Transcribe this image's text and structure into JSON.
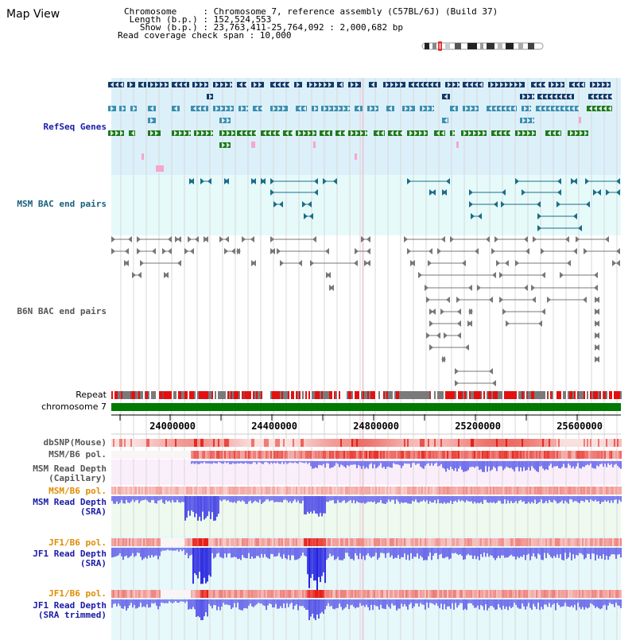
{
  "header": {
    "title": "Map View",
    "info_lines": [
      "Chromosome     : Chromosome 7, reference assembly (C57BL/6J) (Build 37)",
      " Length (b.p.) : 152,524,553",
      "   Show (b.p.) : 23,763,411-25,764,092 : 2,000,682 bp",
      "Read coverage check span : 10,000"
    ]
  },
  "tracks": {
    "refseq_genes": "RefSeq Genes",
    "msm_bac": "MSM BAC end pairs",
    "b6n_bac": "B6N BAC end pairs",
    "repeat": "Repeat",
    "chromosome": "chromosome 7",
    "dbsnp": "dbSNP(Mouse)",
    "msm_b6_pol_1": "MSM/B6 pol.",
    "msm_read_depth_cap_1": "MSM Read Depth",
    "msm_read_depth_cap_2": "(Capillary)",
    "msm_b6_pol_2": "MSM/B6 pol.",
    "msm_read_depth_sra_1": "MSM Read Depth",
    "msm_read_depth_sra_2": "(SRA)",
    "jf1_b6_pol_1": "JF1/B6 pol.",
    "jf1_read_depth_sra_1": "JF1 Read Depth",
    "jf1_read_depth_sra_2": "(SRA)",
    "jf1_b6_pol_2": "JF1/B6 pol.",
    "jf1_read_depth_trim_1": "JF1 Read Depth",
    "jf1_read_depth_trim_2": "(SRA trimmed)"
  },
  "axis": {
    "ticks": [
      "24000000",
      "24400000",
      "24800000",
      "25200000",
      "25600000"
    ]
  },
  "colors": {
    "gene_dark": "#123a6a",
    "gene_mid": "#3a8fb0",
    "gene_green": "#1e7a1e",
    "gene_pink": "#f7a6c9",
    "bac_msm": "#1a6d8a",
    "bac_b6n": "#777777",
    "label_blue": "#1a1aa8",
    "label_teal": "#18607e",
    "label_orange": "#e08c00",
    "chromosome_bar": "#007a00"
  }
}
